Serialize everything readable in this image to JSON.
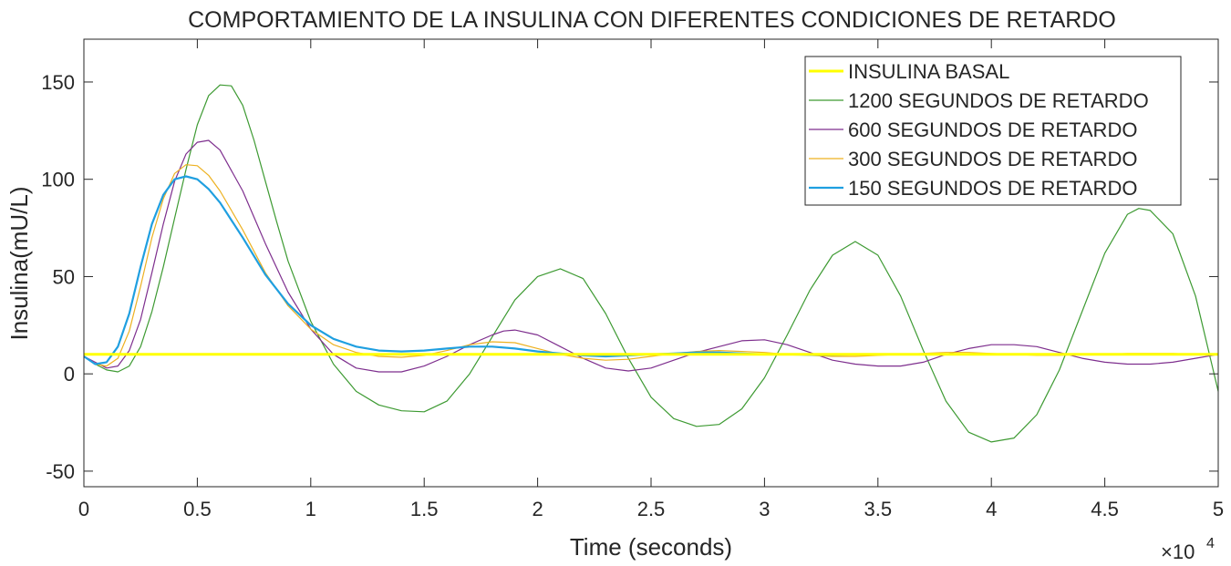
{
  "chart_data": {
    "type": "line",
    "title": "COMPORTAMIENTO DE LA INSULINA CON DIFERENTES CONDICIONES DE RETARDO",
    "xlabel": "Time (seconds)",
    "ylabel": "Insulina(mU/L)",
    "x_exponent_base": "×10",
    "x_exponent_power": "4",
    "xlim": [
      0,
      50000
    ],
    "ylim": [
      -58,
      172
    ],
    "x_ticks": [
      0,
      5000,
      10000,
      15000,
      20000,
      25000,
      30000,
      35000,
      40000,
      45000,
      50000
    ],
    "x_tick_labels": [
      "0",
      "0.5",
      "1",
      "1.5",
      "2",
      "2.5",
      "3",
      "3.5",
      "4",
      "4.5",
      "5"
    ],
    "y_ticks": [
      -50,
      0,
      50,
      100,
      150
    ],
    "y_tick_labels": [
      "-50",
      "0",
      "50",
      "100",
      "150"
    ],
    "grid": false,
    "legend_position": "top-right",
    "series": [
      {
        "name": "INSULINA BASAL",
        "color": "#ffff00",
        "points": [
          [
            0,
            10
          ],
          [
            50000,
            10
          ]
        ]
      },
      {
        "name": "1200 SEGUNDOS DE RETARDO",
        "color": "#3d9a32",
        "points": [
          [
            0,
            9
          ],
          [
            500,
            5
          ],
          [
            1000,
            2
          ],
          [
            1500,
            1
          ],
          [
            2000,
            4
          ],
          [
            2500,
            14
          ],
          [
            3000,
            32
          ],
          [
            3500,
            55
          ],
          [
            4000,
            80
          ],
          [
            4500,
            105
          ],
          [
            5000,
            128
          ],
          [
            5500,
            143
          ],
          [
            6000,
            148.5
          ],
          [
            6500,
            148
          ],
          [
            7000,
            138
          ],
          [
            7500,
            120
          ],
          [
            8000,
            99
          ],
          [
            8500,
            78
          ],
          [
            9000,
            58
          ],
          [
            10000,
            27
          ],
          [
            11000,
            5
          ],
          [
            12000,
            -9
          ],
          [
            13000,
            -16
          ],
          [
            14000,
            -19
          ],
          [
            15000,
            -19.5
          ],
          [
            16000,
            -14
          ],
          [
            17000,
            0
          ],
          [
            18000,
            19
          ],
          [
            19000,
            38
          ],
          [
            20000,
            50
          ],
          [
            21000,
            54
          ],
          [
            22000,
            49
          ],
          [
            23000,
            31
          ],
          [
            24000,
            8
          ],
          [
            25000,
            -12
          ],
          [
            26000,
            -23
          ],
          [
            27000,
            -27
          ],
          [
            28000,
            -26
          ],
          [
            29000,
            -18
          ],
          [
            30000,
            -2
          ],
          [
            31000,
            20
          ],
          [
            32000,
            43
          ],
          [
            33000,
            61
          ],
          [
            34000,
            68
          ],
          [
            35000,
            61
          ],
          [
            36000,
            40
          ],
          [
            37000,
            12
          ],
          [
            38000,
            -14
          ],
          [
            39000,
            -30
          ],
          [
            40000,
            -35
          ],
          [
            41000,
            -33
          ],
          [
            42000,
            -21
          ],
          [
            43000,
            2
          ],
          [
            44000,
            32
          ],
          [
            45000,
            62
          ],
          [
            46000,
            82
          ],
          [
            46500,
            85
          ],
          [
            47000,
            84
          ],
          [
            48000,
            72
          ],
          [
            49000,
            40
          ],
          [
            50000,
            -9
          ]
        ]
      },
      {
        "name": "600 SEGUNDOS DE RETARDO",
        "color": "#7e2f8e",
        "points": [
          [
            0,
            9
          ],
          [
            500,
            6
          ],
          [
            1000,
            3
          ],
          [
            1500,
            4
          ],
          [
            2000,
            12
          ],
          [
            2500,
            28
          ],
          [
            3000,
            52
          ],
          [
            3500,
            77
          ],
          [
            4000,
            99
          ],
          [
            4500,
            113
          ],
          [
            5000,
            119
          ],
          [
            5500,
            120
          ],
          [
            6000,
            115
          ],
          [
            7000,
            94
          ],
          [
            8000,
            67
          ],
          [
            9000,
            42
          ],
          [
            10000,
            23
          ],
          [
            11000,
            10
          ],
          [
            12000,
            3
          ],
          [
            13000,
            1
          ],
          [
            14000,
            1
          ],
          [
            15000,
            4
          ],
          [
            16000,
            9
          ],
          [
            17000,
            15
          ],
          [
            18000,
            20
          ],
          [
            18500,
            22
          ],
          [
            19000,
            22.5
          ],
          [
            20000,
            20
          ],
          [
            21000,
            14
          ],
          [
            22000,
            8
          ],
          [
            23000,
            3
          ],
          [
            24000,
            1.5
          ],
          [
            25000,
            3
          ],
          [
            26000,
            7
          ],
          [
            27000,
            11
          ],
          [
            28000,
            14
          ],
          [
            29000,
            17
          ],
          [
            30000,
            17.5
          ],
          [
            31000,
            15
          ],
          [
            32000,
            11
          ],
          [
            33000,
            7
          ],
          [
            34000,
            5
          ],
          [
            35000,
            4
          ],
          [
            36000,
            4
          ],
          [
            37000,
            6
          ],
          [
            38000,
            10
          ],
          [
            39000,
            13
          ],
          [
            40000,
            15
          ],
          [
            41000,
            15
          ],
          [
            42000,
            14
          ],
          [
            43000,
            11
          ],
          [
            44000,
            8
          ],
          [
            45000,
            6
          ],
          [
            46000,
            5
          ],
          [
            47000,
            5
          ],
          [
            48000,
            6
          ],
          [
            49000,
            8
          ],
          [
            50000,
            10
          ]
        ]
      },
      {
        "name": "300 SEGUNDOS DE RETARDO",
        "color": "#edb120",
        "points": [
          [
            0,
            9
          ],
          [
            500,
            5
          ],
          [
            1000,
            4
          ],
          [
            1500,
            8
          ],
          [
            2000,
            22
          ],
          [
            2500,
            45
          ],
          [
            3000,
            70
          ],
          [
            3500,
            90
          ],
          [
            4000,
            103
          ],
          [
            4500,
            107.5
          ],
          [
            5000,
            107
          ],
          [
            5500,
            102
          ],
          [
            6000,
            94
          ],
          [
            7000,
            74
          ],
          [
            8000,
            52
          ],
          [
            9000,
            35
          ],
          [
            10000,
            23
          ],
          [
            11000,
            15
          ],
          [
            12000,
            11
          ],
          [
            13000,
            9
          ],
          [
            14000,
            8.5
          ],
          [
            15000,
            9.5
          ],
          [
            16000,
            12
          ],
          [
            17000,
            15
          ],
          [
            18000,
            16.5
          ],
          [
            19000,
            16
          ],
          [
            20000,
            13
          ],
          [
            21000,
            10
          ],
          [
            22000,
            8
          ],
          [
            23000,
            7
          ],
          [
            24000,
            7.5
          ],
          [
            25000,
            9
          ],
          [
            26000,
            10.5
          ],
          [
            27000,
            11.5
          ],
          [
            28000,
            12
          ],
          [
            29000,
            11.5
          ],
          [
            30000,
            11
          ],
          [
            31000,
            10
          ],
          [
            32000,
            9.5
          ],
          [
            33000,
            9
          ],
          [
            34000,
            9
          ],
          [
            35000,
            9.5
          ],
          [
            36000,
            10
          ],
          [
            37000,
            10.5
          ],
          [
            38000,
            11
          ],
          [
            39000,
            11
          ],
          [
            40000,
            10.5
          ],
          [
            41000,
            10
          ],
          [
            42000,
            9.5
          ],
          [
            43000,
            9.5
          ],
          [
            44000,
            10
          ],
          [
            45000,
            10
          ],
          [
            46000,
            10.5
          ],
          [
            47000,
            10.5
          ],
          [
            48000,
            10.5
          ],
          [
            49000,
            10
          ],
          [
            50000,
            10
          ]
        ]
      },
      {
        "name": "150 SEGUNDOS DE RETARDO",
        "color": "#1f9fe0",
        "points": [
          [
            0,
            9
          ],
          [
            500,
            5
          ],
          [
            1000,
            6
          ],
          [
            1500,
            14
          ],
          [
            2000,
            31
          ],
          [
            2500,
            55
          ],
          [
            3000,
            77
          ],
          [
            3500,
            92
          ],
          [
            4000,
            100
          ],
          [
            4500,
            101.5
          ],
          [
            5000,
            100
          ],
          [
            5500,
            95
          ],
          [
            6000,
            88
          ],
          [
            7000,
            70
          ],
          [
            8000,
            51
          ],
          [
            9000,
            36
          ],
          [
            10000,
            25
          ],
          [
            11000,
            18
          ],
          [
            12000,
            14
          ],
          [
            13000,
            12
          ],
          [
            14000,
            11.5
          ],
          [
            15000,
            12
          ],
          [
            16000,
            13
          ],
          [
            17000,
            14
          ],
          [
            18000,
            14
          ],
          [
            19000,
            13
          ],
          [
            20000,
            11.5
          ],
          [
            21000,
            10.5
          ],
          [
            22000,
            9.5
          ],
          [
            23000,
            9
          ],
          [
            24000,
            9.5
          ],
          [
            25000,
            10
          ],
          [
            26000,
            10.5
          ],
          [
            27000,
            11
          ],
          [
            28000,
            11
          ],
          [
            29000,
            10.5
          ],
          [
            30000,
            10
          ],
          [
            31000,
            10
          ],
          [
            32000,
            9.8
          ],
          [
            33000,
            9.8
          ],
          [
            34000,
            10
          ],
          [
            35000,
            10
          ],
          [
            36000,
            10
          ],
          [
            37000,
            10
          ],
          [
            38000,
            10
          ],
          [
            39000,
            10
          ],
          [
            40000,
            10
          ],
          [
            41000,
            10
          ],
          [
            42000,
            10
          ],
          [
            43000,
            10
          ],
          [
            44000,
            10
          ],
          [
            45000,
            10
          ],
          [
            46000,
            10
          ],
          [
            47000,
            10
          ],
          [
            48000,
            10
          ],
          [
            49000,
            10
          ],
          [
            50000,
            10
          ]
        ]
      }
    ]
  }
}
